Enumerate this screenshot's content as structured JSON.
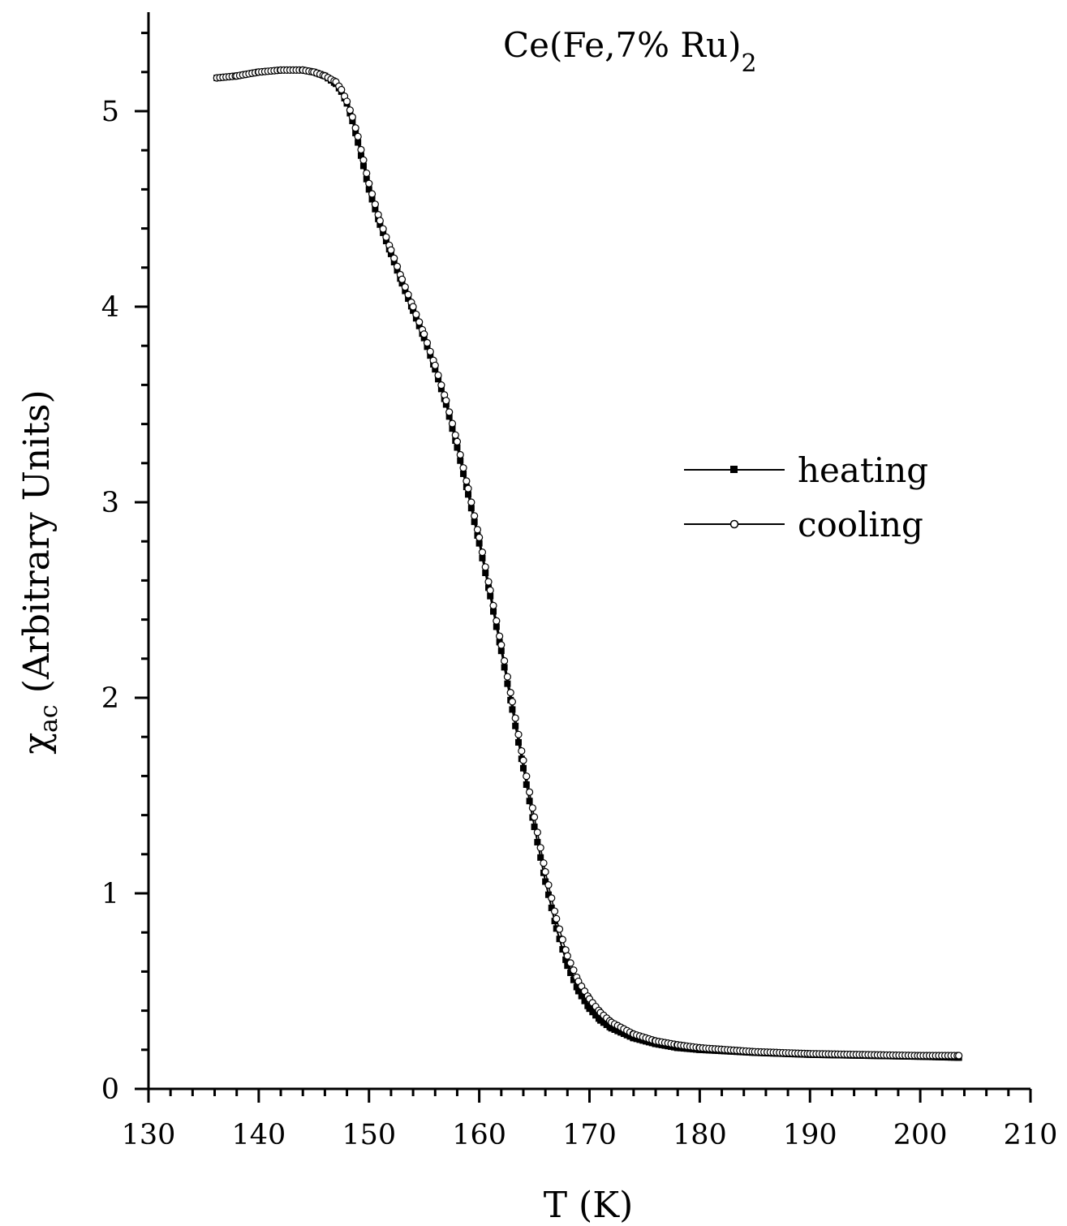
{
  "chart_data": {
    "type": "scatter",
    "title": "Ce(Fe,7% Ru)",
    "title_subscript": "2",
    "xlabel": "T (K)",
    "ylabel_symbol": "χ",
    "ylabel_subscript": "ac",
    "ylabel_rest": " (Arbitrary Units)",
    "xlim": [
      130,
      210
    ],
    "ylim": [
      0,
      5.5
    ],
    "xticks": [
      130,
      140,
      150,
      160,
      170,
      180,
      190,
      200,
      210
    ],
    "yticks": [
      0,
      1,
      2,
      3,
      4,
      5
    ],
    "grid": false,
    "legend_position": "right-middle",
    "series": [
      {
        "name": "heating",
        "marker": "filled-square",
        "points": [
          [
            136.2,
            5.17
          ],
          [
            138,
            5.18
          ],
          [
            140,
            5.2
          ],
          [
            142,
            5.21
          ],
          [
            144,
            5.21
          ],
          [
            145,
            5.2
          ],
          [
            146,
            5.18
          ],
          [
            147,
            5.14
          ],
          [
            147.5,
            5.1
          ],
          [
            148,
            5.04
          ],
          [
            148.5,
            4.95
          ],
          [
            149,
            4.84
          ],
          [
            149.5,
            4.72
          ],
          [
            150,
            4.6
          ],
          [
            151,
            4.42
          ],
          [
            152,
            4.27
          ],
          [
            153,
            4.12
          ],
          [
            154,
            3.98
          ],
          [
            155,
            3.84
          ],
          [
            156,
            3.68
          ],
          [
            157,
            3.5
          ],
          [
            158,
            3.28
          ],
          [
            159,
            3.04
          ],
          [
            160,
            2.79
          ],
          [
            161,
            2.52
          ],
          [
            162,
            2.24
          ],
          [
            163,
            1.94
          ],
          [
            164,
            1.64
          ],
          [
            165,
            1.34
          ],
          [
            166,
            1.06
          ],
          [
            167,
            0.82
          ],
          [
            168,
            0.63
          ],
          [
            169,
            0.5
          ],
          [
            170,
            0.41
          ],
          [
            171,
            0.35
          ],
          [
            172,
            0.31
          ],
          [
            174,
            0.26
          ],
          [
            176,
            0.23
          ],
          [
            178,
            0.21
          ],
          [
            180,
            0.2
          ],
          [
            185,
            0.185
          ],
          [
            190,
            0.175
          ],
          [
            195,
            0.17
          ],
          [
            200,
            0.165
          ],
          [
            203.5,
            0.16
          ]
        ]
      },
      {
        "name": "cooling",
        "marker": "open-circle",
        "points": [
          [
            136.2,
            5.17
          ],
          [
            138,
            5.18
          ],
          [
            140,
            5.2
          ],
          [
            142,
            5.21
          ],
          [
            144,
            5.21
          ],
          [
            145,
            5.2
          ],
          [
            146,
            5.18
          ],
          [
            147,
            5.15
          ],
          [
            147.5,
            5.11
          ],
          [
            148,
            5.05
          ],
          [
            148.5,
            4.97
          ],
          [
            149,
            4.87
          ],
          [
            149.5,
            4.75
          ],
          [
            150,
            4.63
          ],
          [
            151,
            4.44
          ],
          [
            152,
            4.29
          ],
          [
            153,
            4.14
          ],
          [
            154,
            4.0
          ],
          [
            155,
            3.86
          ],
          [
            156,
            3.7
          ],
          [
            157,
            3.52
          ],
          [
            158,
            3.31
          ],
          [
            159,
            3.07
          ],
          [
            160,
            2.82
          ],
          [
            161,
            2.55
          ],
          [
            162,
            2.27
          ],
          [
            163,
            1.98
          ],
          [
            164,
            1.68
          ],
          [
            165,
            1.39
          ],
          [
            166,
            1.11
          ],
          [
            167,
            0.87
          ],
          [
            168,
            0.68
          ],
          [
            169,
            0.55
          ],
          [
            170,
            0.46
          ],
          [
            171,
            0.39
          ],
          [
            172,
            0.34
          ],
          [
            174,
            0.28
          ],
          [
            176,
            0.245
          ],
          [
            178,
            0.225
          ],
          [
            180,
            0.21
          ],
          [
            185,
            0.19
          ],
          [
            190,
            0.18
          ],
          [
            195,
            0.175
          ],
          [
            200,
            0.17
          ],
          [
            203.5,
            0.17
          ]
        ]
      }
    ]
  }
}
